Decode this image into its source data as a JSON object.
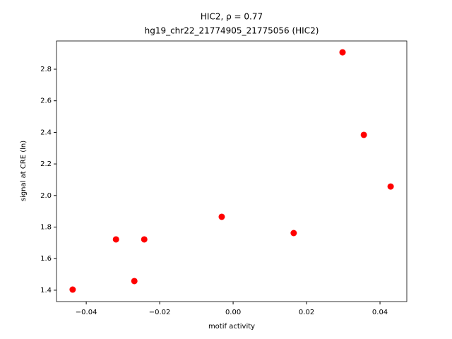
{
  "chart_data": {
    "type": "scatter",
    "title": "HIC2, ρ = 0.77",
    "subtitle": "hg19_chr22_21774905_21775056 (HIC2)",
    "x_label": "motif activity",
    "y_label": "signal at CRE (ln)",
    "color": "#ff0000",
    "x": [
      -0.0437,
      -0.0319,
      -0.0269,
      -0.0242,
      -0.0031,
      0.0165,
      0.0298,
      0.0356,
      0.0429
    ],
    "values": [
      1.404,
      1.722,
      1.458,
      1.722,
      1.865,
      1.762,
      2.907,
      2.384,
      2.057
    ],
    "xlim": [
      -0.0481,
      0.0473
    ],
    "ylim": [
      1.328,
      2.979
    ],
    "xticks": [
      {
        "value": -0.04,
        "label": "−0.04"
      },
      {
        "value": -0.02,
        "label": "−0.02"
      },
      {
        "value": 0,
        "label": "0.00"
      },
      0.02,
      0.04
    ],
    "yticks": [
      1.4,
      1.6,
      1.8,
      {
        "value": 2.0,
        "label": "2.0"
      },
      2.2,
      2.4,
      2.6,
      2.8
    ]
  }
}
